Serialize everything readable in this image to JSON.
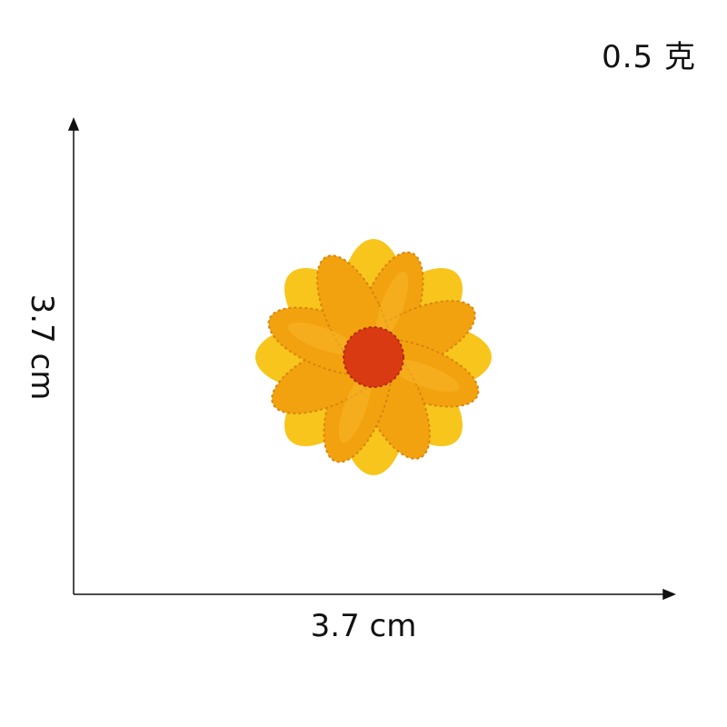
{
  "labels": {
    "weight": "0.5 克",
    "width": "3.7 cm",
    "height": "3.7 cm"
  },
  "colors": {
    "petal": "#F2A20F",
    "petal_edge": "#F7C51C",
    "stitch": "#D9850A",
    "center": "#D93A12",
    "axis": "#111111"
  },
  "image": {
    "subject": "flower-patch-icon"
  }
}
